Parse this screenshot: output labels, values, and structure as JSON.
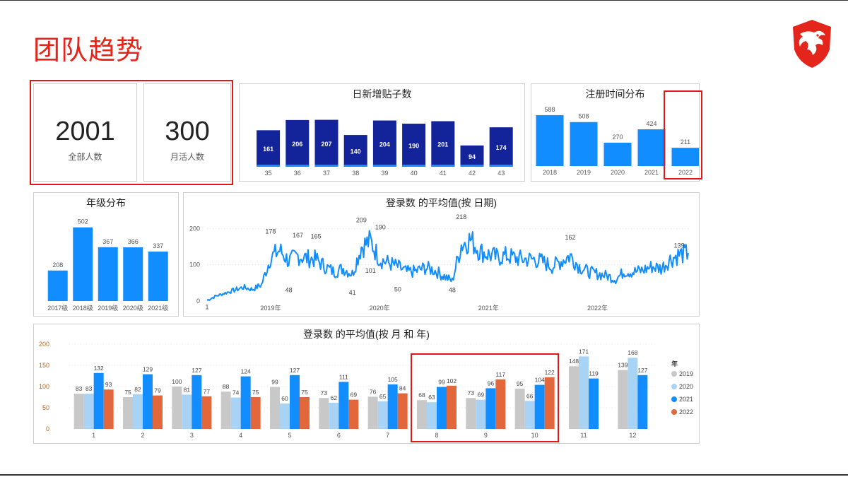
{
  "page_title": "团队趋势",
  "kpis": [
    {
      "value": "2001",
      "label": "全部人数"
    },
    {
      "value": "300",
      "label": "月活人数"
    }
  ],
  "colors": {
    "title_red": "#e4251b",
    "navy": "#13249b",
    "blue": "#118dff",
    "light_blue": "#a9d3f5",
    "gray": "#c8c8c8",
    "orange": "#e2683c",
    "highlight_red": "#e01818"
  },
  "chart_data": [
    {
      "id": "daily_posts",
      "type": "bar",
      "title": "日新增贴子数",
      "categories": [
        "35",
        "36",
        "37",
        "38",
        "39",
        "40",
        "41",
        "42",
        "43"
      ],
      "values": [
        161,
        206,
        207,
        140,
        204,
        190,
        201,
        94,
        174
      ],
      "ylim": [
        0,
        215
      ]
    },
    {
      "id": "register_time",
      "type": "bar",
      "title": "注册时间分布",
      "categories": [
        "2018",
        "2019",
        "2020",
        "2021",
        "2022"
      ],
      "values": [
        588,
        508,
        270,
        424,
        211
      ],
      "ylim": [
        0,
        620
      ]
    },
    {
      "id": "grade",
      "type": "bar",
      "title": "年级分布",
      "categories": [
        "2017级",
        "2018级",
        "2019级",
        "2020级",
        "2021级"
      ],
      "values": [
        208,
        502,
        367,
        366,
        337
      ],
      "ylim": [
        0,
        520
      ]
    },
    {
      "id": "login_daily",
      "type": "line",
      "title": "登录数 的平均值(按 日期)",
      "x_ticks": [
        "2019年",
        "2020年",
        "2021年",
        "2022年"
      ],
      "y_ticks": [
        0,
        100,
        200
      ],
      "ylim": [
        0,
        220
      ],
      "xlim": [
        "2018-06",
        "2022-11"
      ],
      "annotations": [
        {
          "date": "2018-06",
          "value": 1,
          "label": "1"
        },
        {
          "date": "2019-01",
          "value": 178,
          "label": "178"
        },
        {
          "date": "2019-03",
          "value": 48,
          "label": "48"
        },
        {
          "date": "2019-04",
          "value": 167,
          "label": "167"
        },
        {
          "date": "2019-06",
          "value": 165,
          "label": "165"
        },
        {
          "date": "2019-10",
          "value": 41,
          "label": "41"
        },
        {
          "date": "2019-11",
          "value": 209,
          "label": "209"
        },
        {
          "date": "2019-12",
          "value": 101,
          "label": "101"
        },
        {
          "date": "2019-12",
          "value": 190,
          "label": "190"
        },
        {
          "date": "2020-03",
          "value": 50,
          "label": "50"
        },
        {
          "date": "2020-09",
          "value": 48,
          "label": "48"
        },
        {
          "date": "2020-10",
          "value": 218,
          "label": "218"
        },
        {
          "date": "2021-10",
          "value": 162,
          "label": "162"
        },
        {
          "date": "2022-10",
          "value": 139,
          "label": "139"
        }
      ],
      "series": [
        {
          "points": [
            [
              "2018-06",
              2
            ],
            [
              "2018-07",
              14
            ],
            [
              "2018-08",
              22
            ],
            [
              "2018-09",
              30
            ],
            [
              "2018-10",
              38
            ],
            [
              "2018-11",
              32
            ],
            [
              "2018-12",
              45
            ],
            [
              "2019-01",
              120
            ],
            [
              "2019-02",
              140
            ],
            [
              "2019-03",
              110
            ],
            [
              "2019-04",
              125
            ],
            [
              "2019-05",
              118
            ],
            [
              "2019-06",
              115
            ],
            [
              "2019-07",
              95
            ],
            [
              "2019-08",
              80
            ],
            [
              "2019-09",
              90
            ],
            [
              "2019-10",
              75
            ],
            [
              "2019-11",
              150
            ],
            [
              "2019-12",
              165
            ],
            [
              "2020-01",
              115
            ],
            [
              "2020-02",
              105
            ],
            [
              "2020-03",
              95
            ],
            [
              "2020-04",
              80
            ],
            [
              "2020-05",
              82
            ],
            [
              "2020-06",
              92
            ],
            [
              "2020-07",
              85
            ],
            [
              "2020-08",
              70
            ],
            [
              "2020-09",
              55
            ],
            [
              "2020-10",
              155
            ],
            [
              "2020-11",
              170
            ],
            [
              "2020-12",
              138
            ],
            [
              "2021-01",
              128
            ],
            [
              "2021-02",
              120
            ],
            [
              "2021-03",
              125
            ],
            [
              "2021-04",
              118
            ],
            [
              "2021-05",
              115
            ],
            [
              "2021-06",
              115
            ],
            [
              "2021-07",
              108
            ],
            [
              "2021-08",
              95
            ],
            [
              "2021-09",
              110
            ],
            [
              "2021-10",
              125
            ],
            [
              "2021-11",
              95
            ],
            [
              "2021-12",
              80
            ],
            [
              "2022-01",
              75
            ],
            [
              "2022-02",
              70
            ],
            [
              "2022-03",
              60
            ],
            [
              "2022-04",
              82
            ],
            [
              "2022-05",
              80
            ],
            [
              "2022-06",
              85
            ],
            [
              "2022-07",
              95
            ],
            [
              "2022-08",
              90
            ],
            [
              "2022-09",
              115
            ],
            [
              "2022-10",
              128
            ],
            [
              "2022-11",
              132
            ]
          ]
        }
      ]
    },
    {
      "id": "login_monthly",
      "type": "bar",
      "title": "登录数 的平均值(按 月 和 年)",
      "categories": [
        "1",
        "2",
        "3",
        "4",
        "5",
        "6",
        "7",
        "8",
        "9",
        "10",
        "11",
        "12"
      ],
      "ylim": [
        0,
        200
      ],
      "y_ticks": [
        0,
        50,
        100,
        150,
        200
      ],
      "legend_title": "年",
      "legend_position": "right",
      "series": [
        {
          "name": "2019",
          "color": "#c8c8c8",
          "values": [
            83,
            75,
            100,
            88,
            99,
            73,
            76,
            68,
            73,
            95,
            148,
            139
          ]
        },
        {
          "name": "2020",
          "color": "#a9d3f5",
          "values": [
            83,
            82,
            81,
            74,
            60,
            62,
            65,
            63,
            69,
            66,
            171,
            168
          ]
        },
        {
          "name": "2021",
          "color": "#118dff",
          "values": [
            132,
            129,
            127,
            124,
            127,
            111,
            105,
            99,
            96,
            104,
            119,
            127
          ]
        },
        {
          "name": "2022",
          "color": "#e2683c",
          "values": [
            93,
            79,
            77,
            75,
            75,
            69,
            84,
            102,
            117,
            122,
            null,
            null
          ]
        }
      ]
    }
  ]
}
